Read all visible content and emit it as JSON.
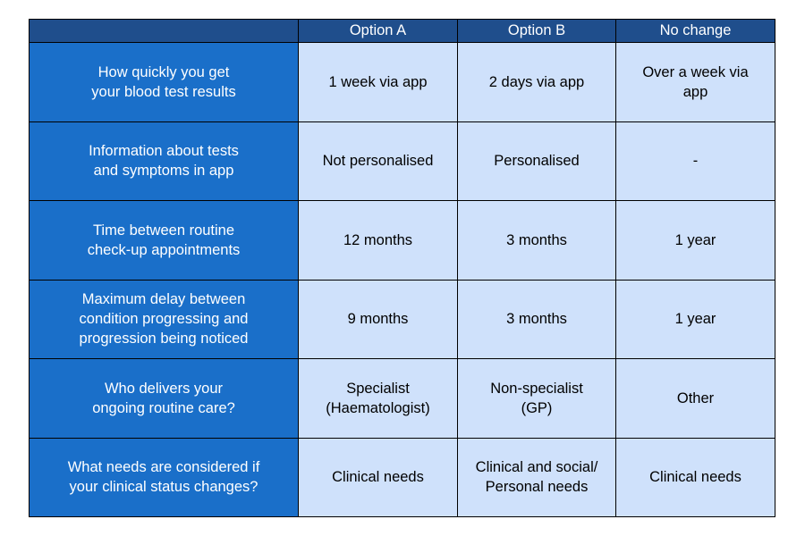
{
  "columns": [
    "",
    "Option A",
    "Option B",
    "No change"
  ],
  "colors": {
    "header_bg": "#1f4e8c",
    "attribute_bg": "#1a6fc9",
    "value_bg": "#cfe1fb",
    "border": "#000000"
  },
  "rows": [
    {
      "attribute": "How quickly you get\nyour blood test results",
      "values": [
        "1 week via app",
        "2 days via app",
        "Over a week via\napp"
      ]
    },
    {
      "attribute": "Information about tests\nand symptoms in app",
      "values": [
        "Not personalised",
        "Personalised",
        "-"
      ]
    },
    {
      "attribute": "Time between routine\ncheck-up appointments",
      "values": [
        "12 months",
        "3 months",
        "1 year"
      ]
    },
    {
      "attribute": "Maximum delay between\ncondition progressing and\nprogression being noticed",
      "values": [
        "9 months",
        "3 months",
        "1 year"
      ]
    },
    {
      "attribute": "Who delivers your\nongoing routine care?",
      "values": [
        "Specialist\n(Haematologist)",
        "Non-specialist\n(GP)",
        "Other"
      ]
    },
    {
      "attribute": "What needs are considered if\nyour clinical status changes?",
      "values": [
        "Clinical needs",
        "Clinical and social/\nPersonal needs",
        "Clinical needs"
      ]
    }
  ]
}
